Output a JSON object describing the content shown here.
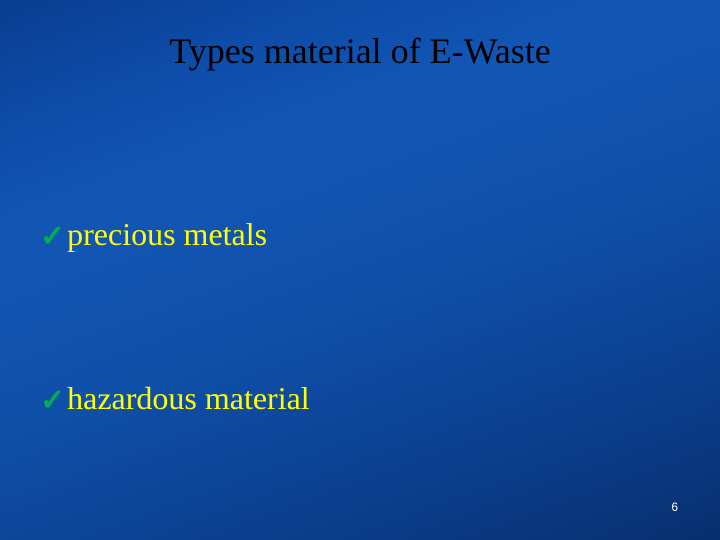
{
  "colors": {
    "background_gradient": [
      "#0a3d8f",
      "#0d4ba8",
      "#1256b5",
      "#0f4fa8",
      "#0a3a85",
      "#072f6f"
    ],
    "title_color": "#000000",
    "bullet_text_color": "#ffff00",
    "check_color": "#00b050",
    "page_number_color": "#ffffff"
  },
  "typography": {
    "title_fontsize": 36,
    "bullet_fontsize": 32,
    "page_number_fontsize": 12,
    "font_family": "Times New Roman"
  },
  "title": "Types material of E-Waste",
  "bullets": [
    {
      "icon": "✓",
      "text": "precious metals"
    },
    {
      "icon": "✓",
      "text": "hazardous material"
    }
  ],
  "page_number": "6"
}
